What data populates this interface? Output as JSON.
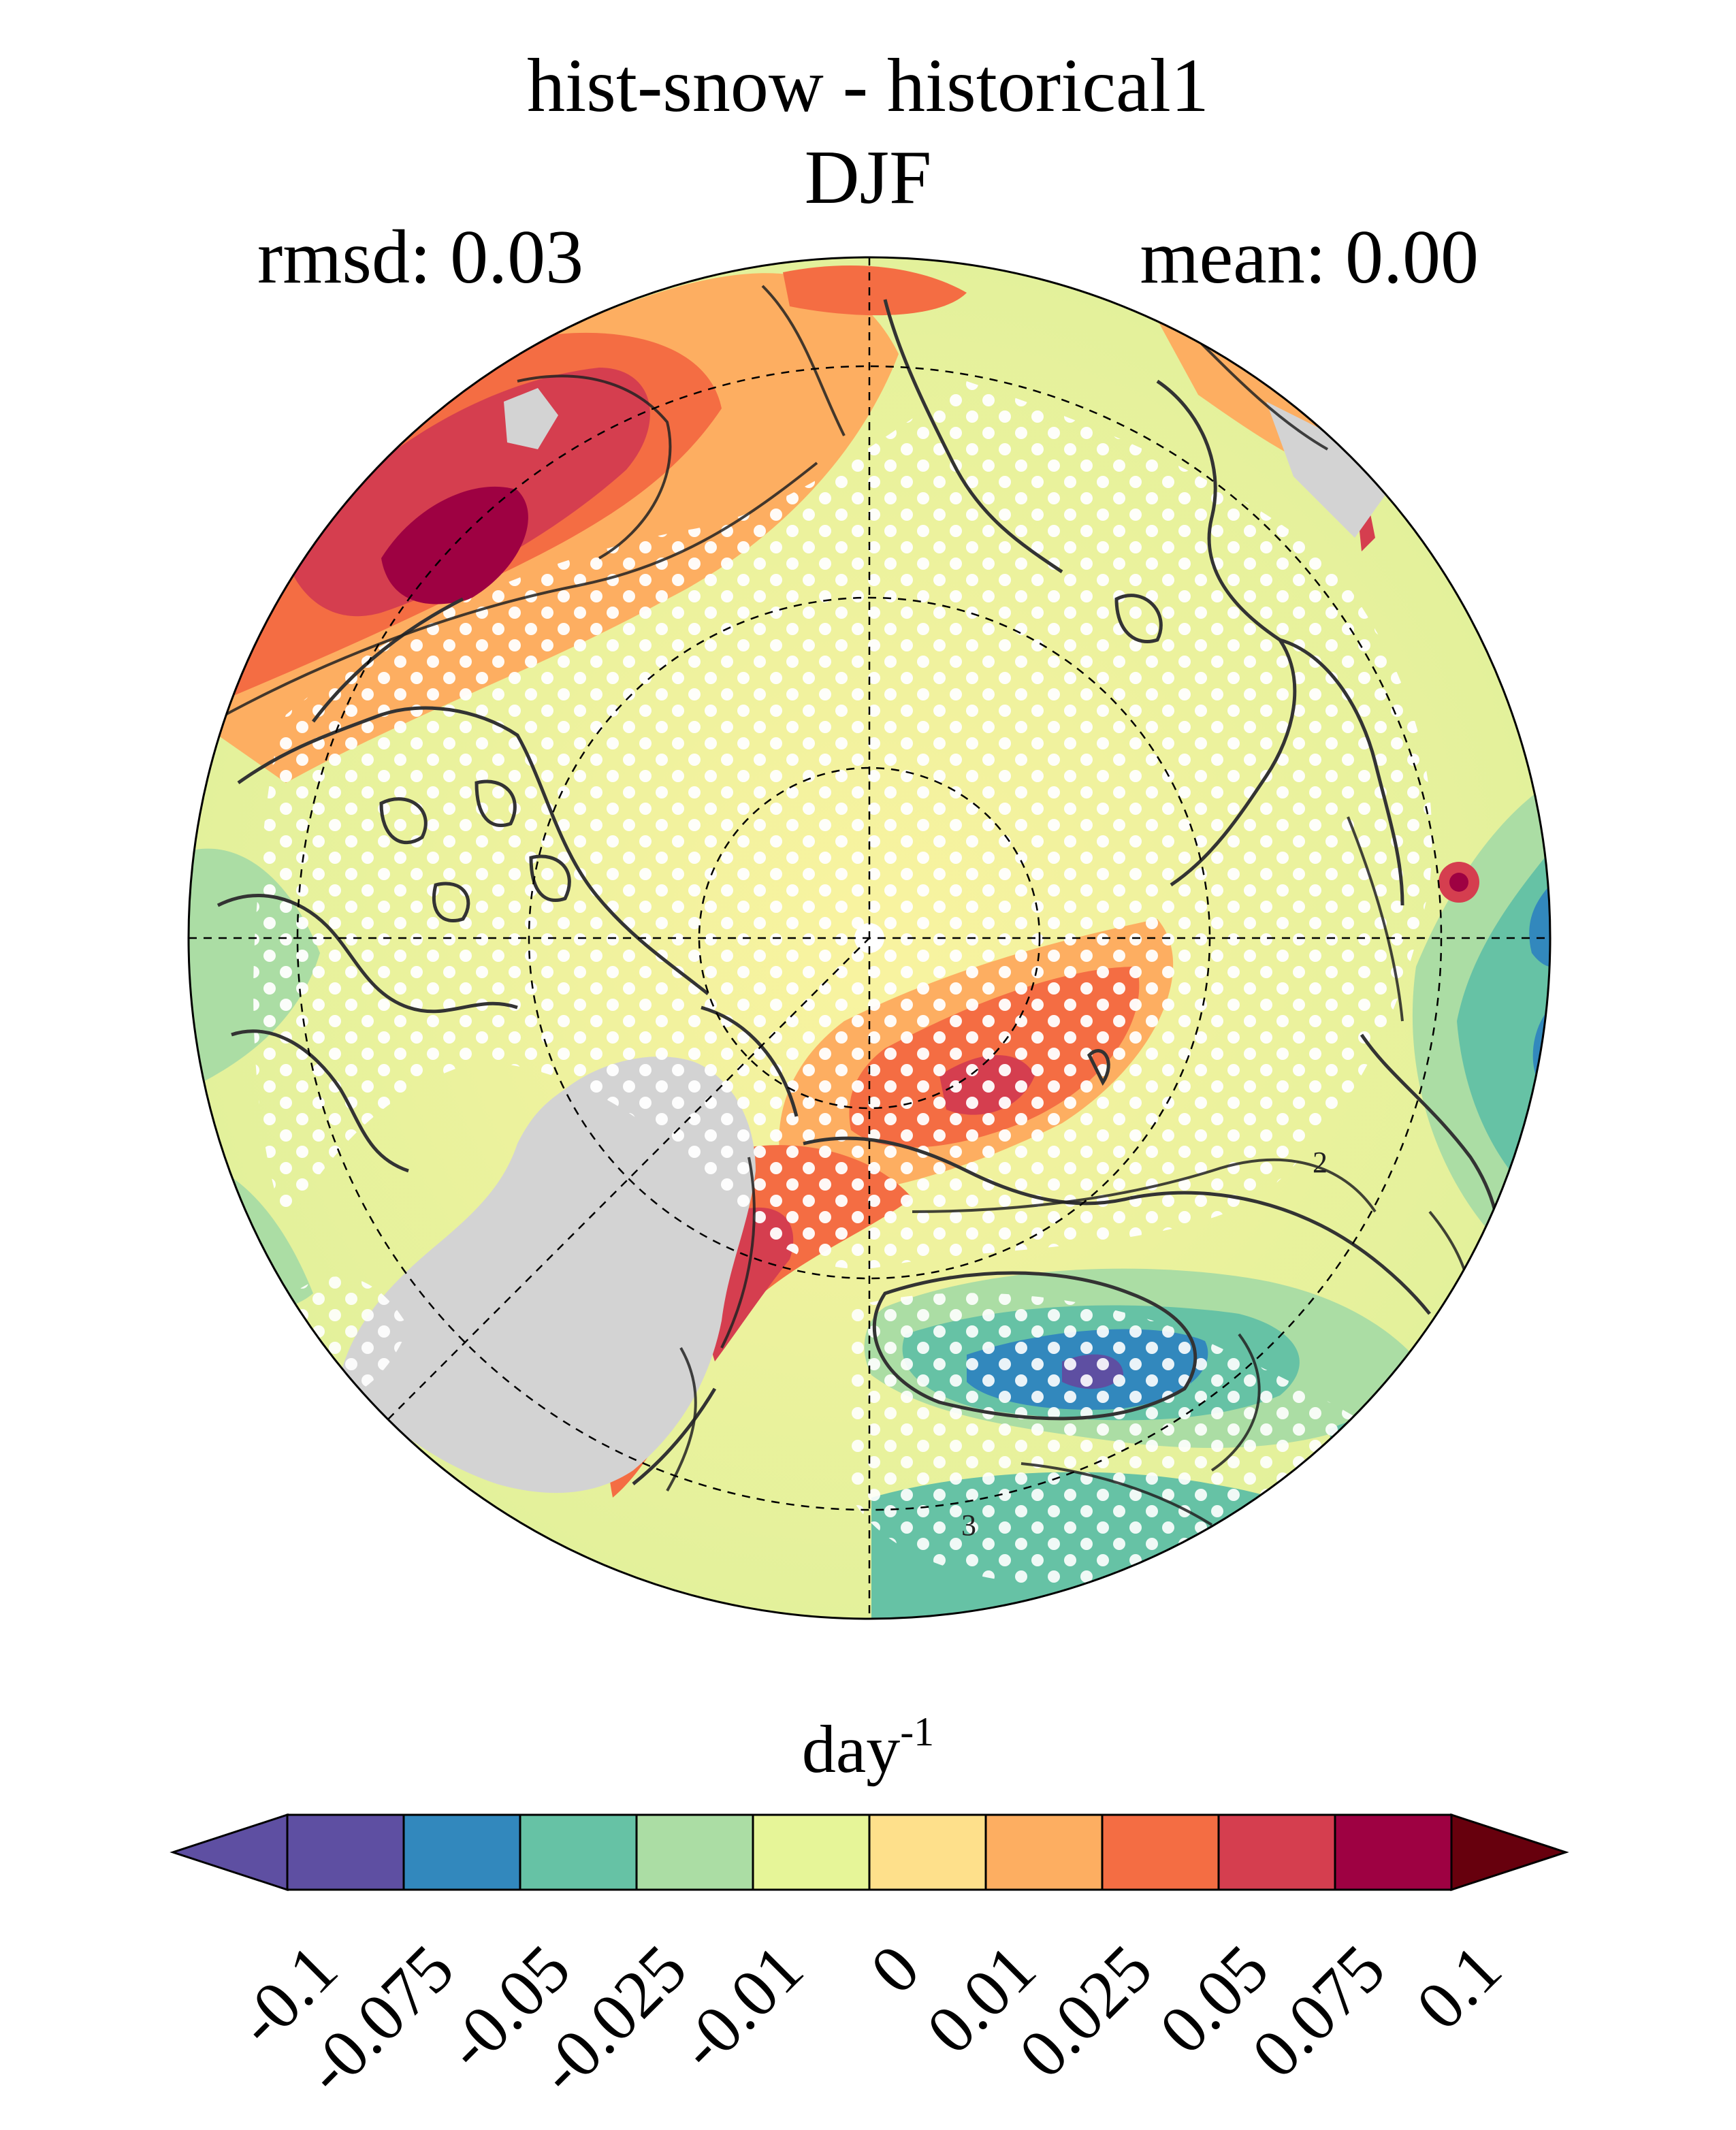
{
  "title": "hist-snow - historical1",
  "season": "DJF",
  "stats": {
    "rmsd": "rmsd: 0.03",
    "mean": "mean: 0.00"
  },
  "colorbar": {
    "unit": "day",
    "unit_exponent": "-1",
    "tick_labels": [
      "-0.1",
      "-0.075",
      "-0.05",
      "-0.025",
      "-0.01",
      "0",
      "0.01",
      "0.025",
      "0.05",
      "0.075",
      "0.1"
    ],
    "bounds": [
      -0.1,
      -0.075,
      -0.05,
      -0.025,
      -0.01,
      0,
      0.01,
      0.025,
      0.05,
      0.075,
      0.1
    ],
    "colors": [
      "#5e4fa2",
      "#3288bd",
      "#66c2a5",
      "#abdda4",
      "#e6f598",
      "#fee08b",
      "#fdae61",
      "#f46d43",
      "#d53e4f",
      "#9e0142"
    ],
    "under_color": "#5e4fa2",
    "over_color": "#67000d",
    "extend": "both"
  },
  "map": {
    "projection": "north polar stereographic",
    "missing_color": "#d3d3d3",
    "hatching": "white dots",
    "contour_labels": [
      "2",
      "3"
    ]
  }
}
